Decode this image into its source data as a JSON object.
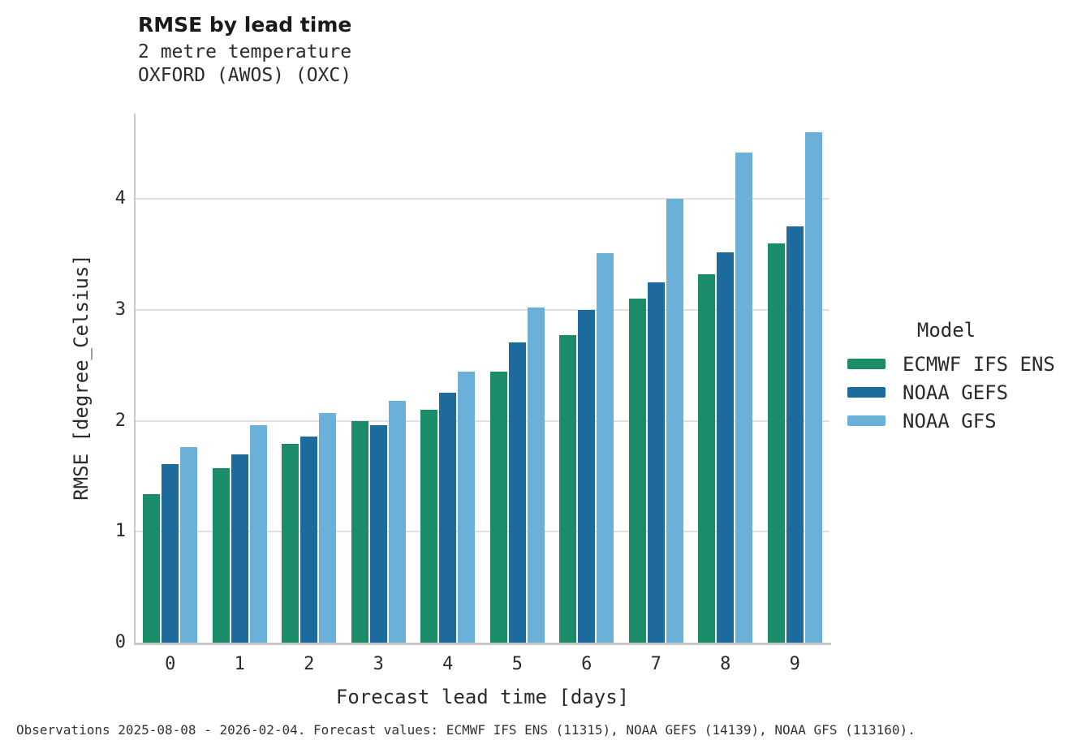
{
  "header": {
    "title": "RMSE by lead time",
    "subtitle1": "2 metre temperature",
    "subtitle2": "OXFORD (AWOS) (OXC)"
  },
  "chart_data": {
    "type": "bar",
    "title": "RMSE by lead time",
    "subtitle": "2 metre temperature — OXFORD (AWOS) (OXC)",
    "xlabel": "Forecast lead time [days]",
    "ylabel": "RMSE [degree_Celsius]",
    "legend_title": "Model",
    "legend_position": "center-right",
    "grid": "horizontal",
    "categories": [
      "0",
      "1",
      "2",
      "3",
      "4",
      "5",
      "6",
      "7",
      "8",
      "9"
    ],
    "yticks": [
      0,
      1,
      2,
      3,
      4
    ],
    "ylim": [
      0,
      4.77
    ],
    "series": [
      {
        "name": "ECMWF IFS ENS",
        "color": "#1a8c69",
        "values": [
          1.34,
          1.57,
          1.79,
          2.0,
          2.1,
          2.44,
          2.77,
          3.1,
          3.32,
          3.6
        ]
      },
      {
        "name": "NOAA GEFS",
        "color": "#1c6b9c",
        "values": [
          1.61,
          1.7,
          1.86,
          1.96,
          2.25,
          2.71,
          3.0,
          3.25,
          3.52,
          3.75
        ]
      },
      {
        "name": "NOAA GFS",
        "color": "#6ab0d8",
        "values": [
          1.76,
          1.96,
          2.07,
          2.18,
          2.44,
          3.02,
          3.51,
          4.0,
          4.42,
          4.6
        ]
      }
    ]
  },
  "footer": {
    "text": "Observations 2025-08-08 - 2026-02-04. Forecast values: ECMWF IFS ENS (11315), NOAA GEFS (14139), NOAA GFS (113160)."
  }
}
